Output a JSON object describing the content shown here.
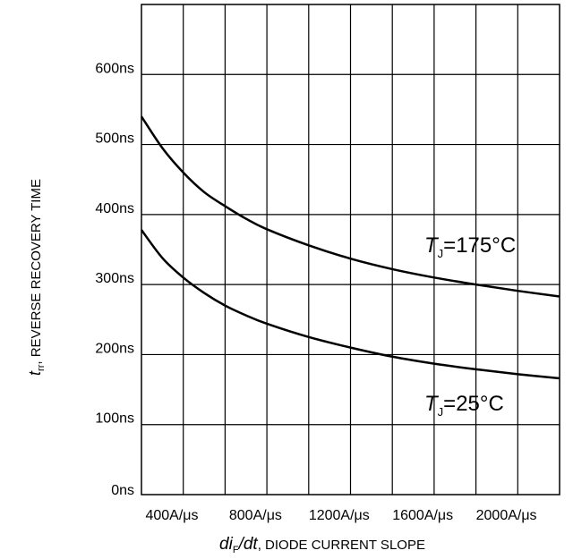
{
  "chart_data": {
    "type": "line",
    "x_unit": "A/μs",
    "y_unit": "ns",
    "xlim": [
      400,
      2400
    ],
    "ylim": [
      0,
      700
    ],
    "x_ticks": [
      400,
      800,
      1200,
      1600,
      2000
    ],
    "x_tick_labels": [
      "400A/μs",
      "800A/μs",
      "1200A/μs",
      "1600A/μs",
      "2000A/μs"
    ],
    "y_ticks": [
      0,
      100,
      200,
      300,
      400,
      500,
      600
    ],
    "y_tick_labels": [
      "0ns",
      "100ns",
      "200ns",
      "300ns",
      "400ns",
      "500ns",
      "600ns"
    ],
    "grid": true,
    "xlabel": {
      "var1": "di",
      "sub1": "F",
      "sep": "/",
      "var2": "dt",
      "text": ", DIODE CURRENT SLOPE"
    },
    "ylabel": {
      "var": "t",
      "sub": "rr",
      "text": ", REVERSE RECOVERY TIME"
    },
    "series": [
      {
        "name": "T_J=175°C",
        "label_parts": {
          "var": "T",
          "sub": "J",
          "text": "=175°C"
        },
        "x": [
          400,
          500,
          600,
          700,
          800,
          900,
          1000,
          1200,
          1400,
          1600,
          1800,
          2000,
          2200,
          2400
        ],
        "y": [
          540,
          495,
          460,
          432,
          412,
          394,
          379,
          356,
          337,
          322,
          310,
          300,
          291,
          283
        ]
      },
      {
        "name": "T_J=25°C",
        "label_parts": {
          "var": "T",
          "sub": "J",
          "text": "=25°C"
        },
        "x": [
          400,
          500,
          600,
          700,
          800,
          900,
          1000,
          1200,
          1400,
          1600,
          1800,
          2000,
          2200,
          2400
        ],
        "y": [
          378,
          338,
          310,
          288,
          270,
          256,
          244,
          225,
          210,
          197,
          187,
          179,
          172,
          166
        ]
      }
    ]
  }
}
